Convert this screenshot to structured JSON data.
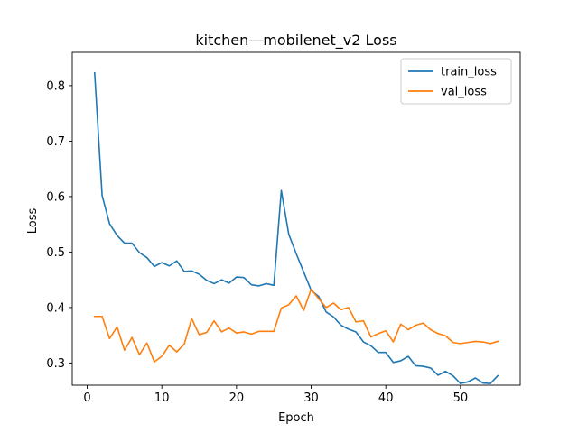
{
  "chart_data": {
    "type": "line",
    "title": "kitchen—mobilenet_v2 Loss",
    "xlabel": "Epoch",
    "ylabel": "Loss",
    "xlim": [
      -2,
      58
    ],
    "ylim": [
      0.26,
      0.86
    ],
    "xticks": [
      0,
      10,
      20,
      30,
      40,
      50
    ],
    "yticks": [
      0.3,
      0.4,
      0.5,
      0.6,
      0.7,
      0.8
    ],
    "legend_position": "top-right",
    "grid": false,
    "x": [
      1,
      2,
      3,
      4,
      5,
      6,
      7,
      8,
      9,
      10,
      11,
      12,
      13,
      14,
      15,
      16,
      17,
      18,
      19,
      20,
      21,
      22,
      23,
      24,
      25,
      26,
      27,
      28,
      29,
      30,
      31,
      32,
      33,
      34,
      35,
      36,
      37,
      38,
      39,
      40,
      41,
      42,
      43,
      44,
      45,
      46,
      47,
      48,
      49,
      50,
      51,
      52,
      53,
      54,
      55
    ],
    "series": [
      {
        "name": "train_loss",
        "color": "#1f77b4",
        "values": [
          0.823,
          0.602,
          0.551,
          0.53,
          0.516,
          0.516,
          0.499,
          0.49,
          0.474,
          0.481,
          0.475,
          0.484,
          0.465,
          0.466,
          0.46,
          0.449,
          0.443,
          0.45,
          0.444,
          0.455,
          0.454,
          0.441,
          0.439,
          0.443,
          0.44,
          0.611,
          0.532,
          0.497,
          0.464,
          0.431,
          0.42,
          0.392,
          0.383,
          0.368,
          0.361,
          0.356,
          0.338,
          0.331,
          0.319,
          0.319,
          0.301,
          0.304,
          0.312,
          0.295,
          0.294,
          0.291,
          0.278,
          0.285,
          0.277,
          0.263,
          0.266,
          0.273,
          0.264,
          0.263,
          0.277
        ]
      },
      {
        "name": "val_loss",
        "color": "#ff7f0e",
        "values": [
          0.384,
          0.384,
          0.344,
          0.365,
          0.323,
          0.346,
          0.315,
          0.336,
          0.302,
          0.312,
          0.332,
          0.32,
          0.334,
          0.38,
          0.351,
          0.355,
          0.376,
          0.356,
          0.363,
          0.354,
          0.356,
          0.352,
          0.357,
          0.357,
          0.357,
          0.399,
          0.405,
          0.421,
          0.395,
          0.433,
          0.416,
          0.4,
          0.408,
          0.396,
          0.4,
          0.374,
          0.376,
          0.347,
          0.353,
          0.358,
          0.338,
          0.37,
          0.36,
          0.368,
          0.372,
          0.36,
          0.353,
          0.349,
          0.337,
          0.335,
          0.337,
          0.339,
          0.338,
          0.335,
          0.339
        ]
      }
    ]
  }
}
